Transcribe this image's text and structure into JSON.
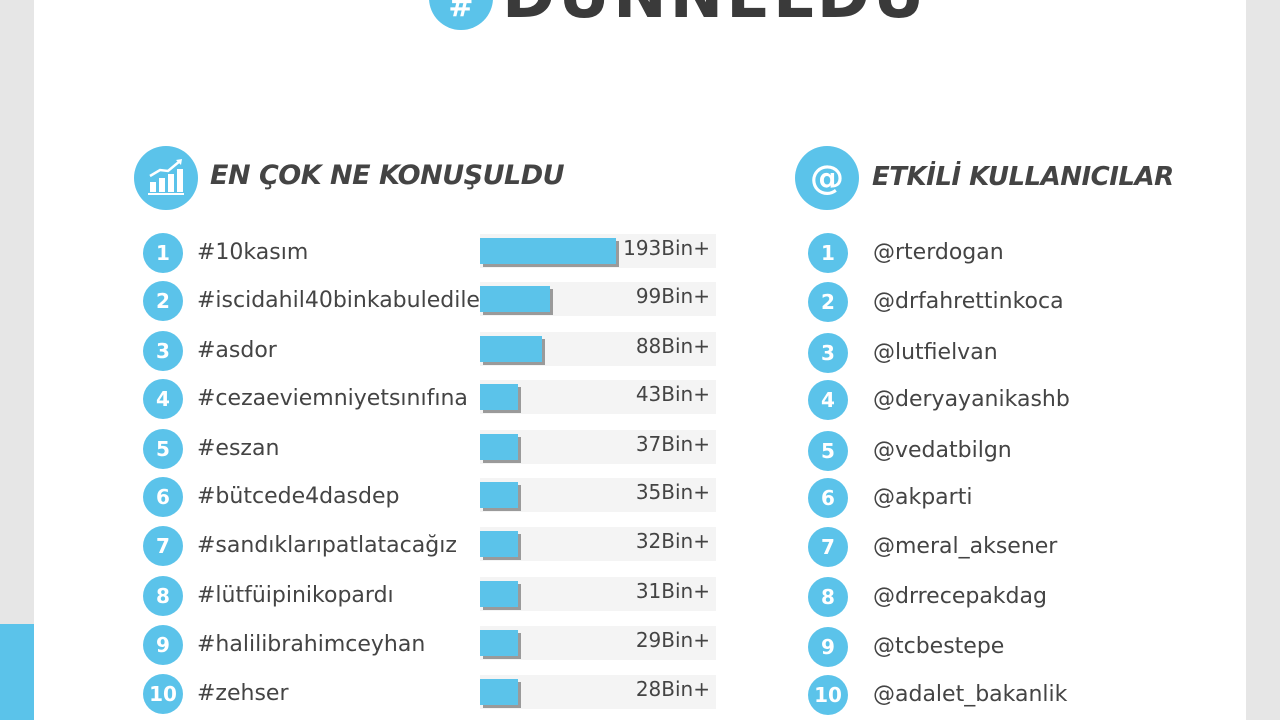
{
  "header": {
    "badge": "#",
    "title": "DÜNNELDU"
  },
  "sections": {
    "topics_title": "EN ÇOK NE KONUŞULDU",
    "users_title": "ETKİLİ KULLANICILAR",
    "users_icon": "@",
    "topics_icon": "chart-up-icon"
  },
  "chart_data": {
    "type": "bar",
    "orientation": "horizontal",
    "title": "EN ÇOK NE KONUŞULDU",
    "categories": [
      "#10kasım",
      "#iscidahil40binkabuledile..",
      "#asdor",
      "#cezaeviemniyetsınıfına",
      "#eszan",
      "#bütcede4dasdep",
      "#sandıklarıpatlatacağız",
      "#lütfüipinikopardı",
      "#halilibrahimceyhan",
      "#zehser"
    ],
    "values": [
      193000,
      99000,
      88000,
      43000,
      37000,
      35000,
      32000,
      31000,
      29000,
      28000
    ],
    "value_labels": [
      "193Bin+",
      "99Bin+",
      "88Bin+",
      "43Bin+",
      "37Bin+",
      "35Bin+",
      "32Bin+",
      "31Bin+",
      "29Bin+",
      "28Bin+"
    ],
    "ranks": [
      "1",
      "2",
      "3",
      "4",
      "5",
      "6",
      "7",
      "8",
      "9",
      "10"
    ]
  },
  "influencers": {
    "ranks": [
      "1",
      "2",
      "3",
      "4",
      "5",
      "6",
      "7",
      "8",
      "9",
      "10"
    ],
    "handles": [
      "@rterdogan",
      "@drfahrettinkoca",
      "@lutfielvan",
      "@deryayanikashb",
      "@vedatbilgn",
      "@akparti",
      "@meral_aksener",
      "@drrecepakdag",
      "@tcbestepe",
      "@adalet_bakanlik"
    ]
  },
  "colors": {
    "accent": "#5bc3ea",
    "text": "#444444",
    "bar_track": "#f4f4f4",
    "bar_shadow": "#9a9a9a"
  }
}
